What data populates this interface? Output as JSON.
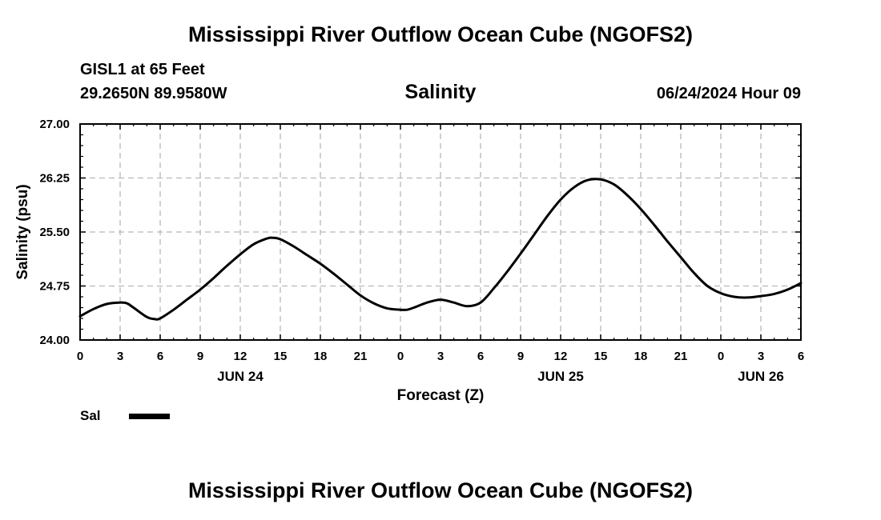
{
  "header": {
    "title": "Mississippi River Outflow Ocean Cube (NGOFS2)",
    "station": "GISL1 at 65 Feet",
    "coords": "29.2650N  89.9580W",
    "variable": "Salinity",
    "datetime": "06/24/2024 Hour 09"
  },
  "footer": {
    "title": "Mississippi River Outflow Ocean Cube (NGOFS2)"
  },
  "legend": {
    "label": "Sal",
    "color": "#000000"
  },
  "chart_data": {
    "type": "line",
    "title": "Salinity",
    "xlabel": "Forecast (Z)",
    "ylabel": "Salinity (psu)",
    "xlim": [
      0,
      54
    ],
    "ylim": [
      24.0,
      27.0
    ],
    "grid": true,
    "y_ticks": [
      "24.00",
      "24.75",
      "25.50",
      "26.25",
      "27.00"
    ],
    "x_ticks": [
      {
        "h": 0,
        "label": "0"
      },
      {
        "h": 3,
        "label": "3"
      },
      {
        "h": 6,
        "label": "6"
      },
      {
        "h": 9,
        "label": "9"
      },
      {
        "h": 12,
        "label": "12"
      },
      {
        "h": 15,
        "label": "15"
      },
      {
        "h": 18,
        "label": "18"
      },
      {
        "h": 21,
        "label": "21"
      },
      {
        "h": 24,
        "label": "0"
      },
      {
        "h": 27,
        "label": "3"
      },
      {
        "h": 30,
        "label": "6"
      },
      {
        "h": 33,
        "label": "9"
      },
      {
        "h": 36,
        "label": "12"
      },
      {
        "h": 39,
        "label": "15"
      },
      {
        "h": 42,
        "label": "18"
      },
      {
        "h": 45,
        "label": "21"
      },
      {
        "h": 48,
        "label": "0"
      },
      {
        "h": 51,
        "label": "3"
      },
      {
        "h": 54,
        "label": "6"
      }
    ],
    "day_labels": [
      {
        "h": 12,
        "label": "JUN 24"
      },
      {
        "h": 36,
        "label": "JUN 25"
      },
      {
        "h": 51,
        "label": "JUN 26"
      }
    ],
    "series": [
      {
        "name": "Sal",
        "x": [
          0,
          1,
          2,
          3,
          3.5,
          4,
          5,
          5.6,
          6,
          7,
          8,
          9,
          10,
          11,
          12,
          13,
          14,
          14.4,
          15,
          16,
          17,
          18,
          19,
          20,
          21,
          22,
          23,
          24,
          24.5,
          25,
          26,
          27,
          28,
          29,
          30,
          31,
          32,
          33,
          34,
          35,
          36,
          37,
          38,
          39,
          40,
          41,
          42,
          43,
          44,
          45,
          46,
          47,
          48,
          49,
          50,
          51,
          52,
          53,
          54
        ],
        "y": [
          24.33,
          24.43,
          24.5,
          24.52,
          24.51,
          24.45,
          24.32,
          24.29,
          24.3,
          24.42,
          24.56,
          24.7,
          24.86,
          25.03,
          25.19,
          25.33,
          25.41,
          25.42,
          25.4,
          25.3,
          25.18,
          25.06,
          24.92,
          24.77,
          24.62,
          24.51,
          24.44,
          24.42,
          24.42,
          24.45,
          24.52,
          24.56,
          24.52,
          24.47,
          24.52,
          24.72,
          24.95,
          25.2,
          25.46,
          25.72,
          25.95,
          26.12,
          26.22,
          26.23,
          26.16,
          26.01,
          25.82,
          25.6,
          25.37,
          25.15,
          24.93,
          24.75,
          24.65,
          24.6,
          24.59,
          24.61,
          24.64,
          24.7,
          24.79
        ]
      }
    ]
  }
}
